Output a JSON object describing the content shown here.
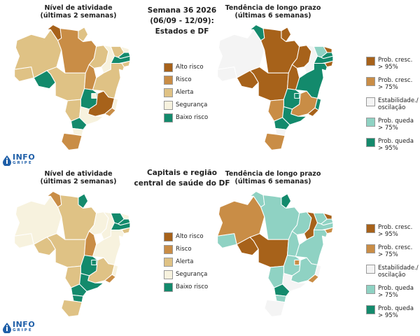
{
  "header": {
    "title_line1": "Semana 36 2026",
    "title_line2": "(06/09 - 12/09):",
    "title_line3": "Estados e DF"
  },
  "section2": {
    "title_line1": "Capitais e região",
    "title_line2": "central de saúde do DF"
  },
  "panels": {
    "activity_title_line1": "Nível de atividade",
    "activity_title_line2": "(últimas 2 semanas)",
    "trend_title_line1": "Tendência de longo prazo",
    "trend_title_line2": "(últimas 6 semanas)"
  },
  "legend_activity": [
    {
      "label": "Alto risco",
      "color": "#a7621a"
    },
    {
      "label": "Risco",
      "color": "#c98d46"
    },
    {
      "label": "Alerta",
      "color": "#dfc285"
    },
    {
      "label": "Segurança",
      "color": "#f7f2de"
    },
    {
      "label": "Baixo risco",
      "color": "#138a6c"
    }
  ],
  "legend_trend": [
    {
      "line1": "Prob. cresc.",
      "line2": "> 95%",
      "color": "#a7621a"
    },
    {
      "line1": "Prob. cresc.",
      "line2": "> 75%",
      "color": "#c98d46"
    },
    {
      "line1": "Estabilidade./",
      "line2": "oscilação",
      "color": "#f4f4f4"
    },
    {
      "line1": "Prob. queda",
      "line2": "> 75%",
      "color": "#8fd2c3"
    },
    {
      "line1": "Prob. queda",
      "line2": "> 95%",
      "color": "#138a6c"
    }
  ],
  "logo": {
    "line1": "INFO",
    "line2": "GRIPE",
    "icon": "info-drop-icon"
  },
  "maps": {
    "states_activity": [
      "#dfc285",
      "#dfc285",
      "#a7621a",
      "#dfc285",
      "#c98d46",
      "#138a6c",
      "#dfc285",
      "#c98d46",
      "#dfc285",
      "#f7f2de",
      "#dfc285",
      "#f7f2de",
      "#138a6c",
      "#138a6c",
      "#dfc285",
      "#f7f2de",
      "#dfc285",
      "#138a6c",
      "#f7f2de",
      "#dfc285",
      "#a7621a",
      "#f7f2de",
      "#c98d46",
      "#f7f2de",
      "#138a6c",
      "#f7f2de",
      "#c98d46"
    ],
    "states_trend": [
      "#f4f4f4",
      "#f4f4f4",
      "#138a6c",
      "#a7621a",
      "#a7621a",
      "#a7621a",
      "#a7621a",
      "#a7621a",
      "#a7621a",
      "#f4f4f4",
      "#8fd2c3",
      "#a7621a",
      "#138a6c",
      "#138a6c",
      "#a7621a",
      "#a7621a",
      "#138a6c",
      "#138a6c",
      "#138a6c",
      "#c98d46",
      "#c98d46",
      "#138a6c",
      "#a7621a",
      "#138a6c",
      "#138a6c",
      "#f4f4f4",
      "#c98d46"
    ],
    "capitals_activity": [
      "#f7f2de",
      "#f7f2de",
      "#c98d46",
      "#138a6c",
      "#dfc285",
      "#dfc285",
      "#dfc285",
      "#c98d46",
      "#f7f2de",
      "#f7f2de",
      "#138a6c",
      "#f7f2de",
      "#138a6c",
      "#138a6c",
      "#dfc285",
      "#138a6c",
      "#f7f2de",
      "#138a6c",
      "#138a6c",
      "#dfc285",
      "#dfc285",
      "#f7f2de",
      "#c98d46",
      "#138a6c",
      "#138a6c",
      "#138a6c",
      "#dfc285"
    ],
    "capitals_trend": [
      "#8fd2c3",
      "#c98d46",
      "#8fd2c3",
      "#138a6c",
      "#8fd2c3",
      "#a7621a",
      "#a7621a",
      "#8fd2c3",
      "#8fd2c3",
      "#a7621a",
      "#8fd2c3",
      "#a7621a",
      "#8fd2c3",
      "#8fd2c3",
      "#c98d46",
      "#8fd2c3",
      "#8fd2c3",
      "#8fd2c3",
      "#c98d46",
      "#8fd2c3",
      "#8fd2c3",
      "#f4f4f4",
      "#c98d46",
      "#f4f4f4",
      "#138a6c",
      "#8fd2c3",
      "#f4f4f4"
    ]
  }
}
